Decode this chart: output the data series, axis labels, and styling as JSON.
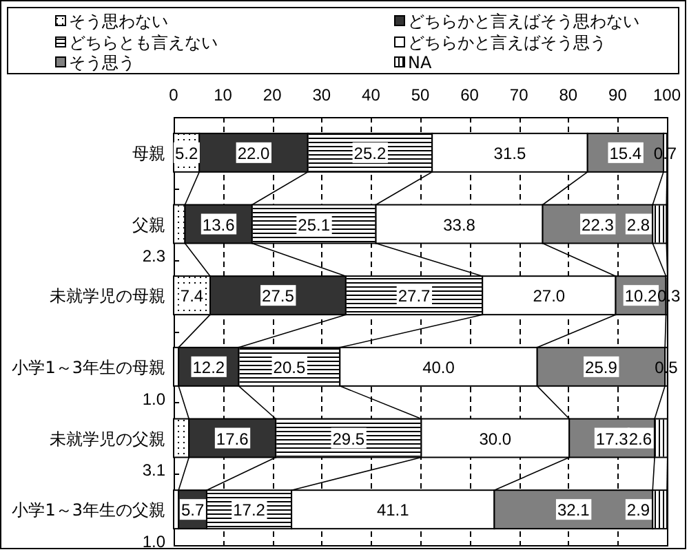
{
  "chart_data": {
    "type": "bar",
    "orientation": "horizontal",
    "stacked": true,
    "categories": [
      "母親",
      "父親",
      "未就学児の母親",
      "小学1～3年生の母親",
      "未就学児の父親",
      "小学1～3年生の父親"
    ],
    "series": [
      {
        "name": "そう思わない",
        "color": "#ffffff",
        "values": [
          5.2,
          2.3,
          7.4,
          1.0,
          3.1,
          1.0
        ],
        "value_labels": [
          "5.2",
          "2.3",
          "7.4",
          "1.0",
          "3.1",
          "1.0"
        ]
      },
      {
        "name": "どちらかと言えばそう思わない",
        "color": "#333333",
        "values": [
          22.0,
          13.6,
          27.5,
          12.2,
          17.6,
          5.7
        ],
        "value_labels": [
          "22.0",
          "13.6",
          "27.5",
          "12.2",
          "17.6",
          "5.7"
        ]
      },
      {
        "name": "どちらとも言えない",
        "color": "#ffffff",
        "values": [
          25.2,
          25.1,
          27.7,
          20.5,
          29.5,
          17.2
        ],
        "value_labels": [
          "25.2",
          "25.1",
          "27.7",
          "20.5",
          "29.5",
          "17.2"
        ]
      },
      {
        "name": "どちらかと言えばそう思う",
        "color": "#ffffff",
        "values": [
          31.5,
          33.8,
          27.0,
          40.0,
          30.0,
          41.1
        ],
        "value_labels": [
          "31.5",
          "33.8",
          "27.0",
          "40.0",
          "30.0",
          "41.1"
        ]
      },
      {
        "name": "そう思う",
        "color": "#808080",
        "values": [
          15.4,
          22.3,
          10.2,
          25.9,
          17.3,
          32.1
        ],
        "value_labels": [
          "15.4",
          "22.3",
          "10.2",
          "25.9",
          "17.3",
          "32.1"
        ]
      },
      {
        "name": "NA",
        "color": "#ffffff",
        "values": [
          0.7,
          2.8,
          0.3,
          0.5,
          2.6,
          2.9
        ],
        "value_labels": [
          "0.7",
          "2.8",
          "0.3",
          "0.5",
          "2.6",
          "2.9"
        ]
      }
    ],
    "xlim": [
      0,
      100
    ],
    "xticks": [
      0,
      10,
      20,
      30,
      40,
      50,
      60,
      70,
      80,
      90,
      100
    ],
    "grid": "x",
    "legend": "top"
  }
}
